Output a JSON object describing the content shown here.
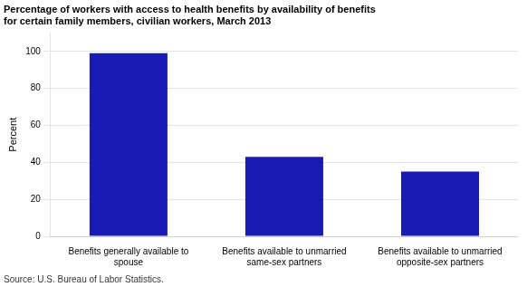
{
  "chart_data": {
    "type": "bar",
    "title": [
      "Percentage of workers with access to health benefits by availability of benefits",
      "for certain family members, civilian workers, March 2013"
    ],
    "source": "Source: U.S. Bureau of Labor Statistics.",
    "ylabel": "Percent",
    "categories": [
      "Benefits generally available to\nspouse",
      "Benefits available to unmarried\nsame-sex partners",
      "Benefits available to unmarried\nopposite-sex partners"
    ],
    "values": [
      99,
      43,
      35
    ],
    "color": "#1a1ab5",
    "ylim": [
      0,
      110
    ],
    "yticks": [
      0,
      20,
      40,
      60,
      80,
      100
    ],
    "grid": true
  }
}
